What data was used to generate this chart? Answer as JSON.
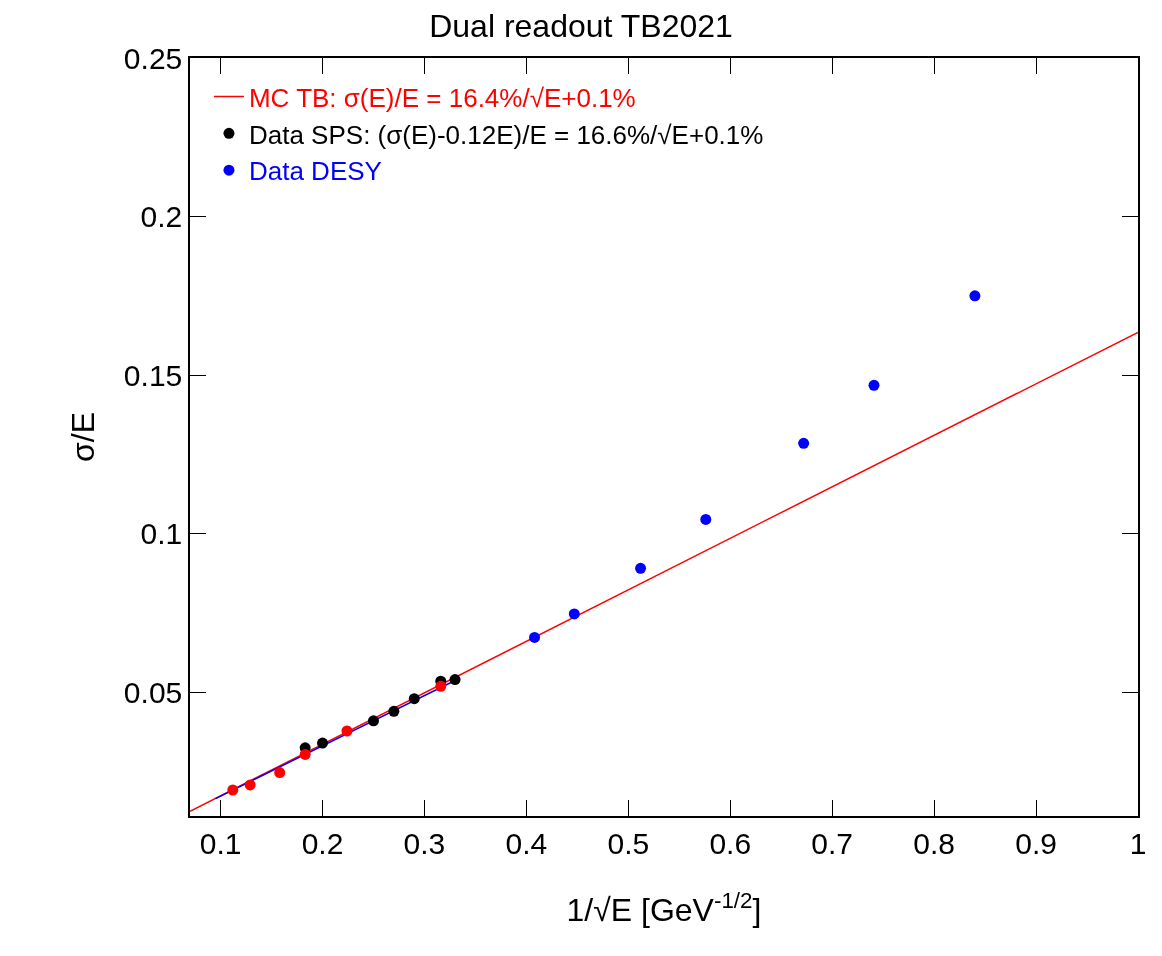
{
  "chart_data": {
    "type": "scatter",
    "title": "Dual readout TB2021",
    "xlabel": "1/√E [GeV$^{-1/2}$]",
    "ylabel": "σ/E",
    "xlim": [
      0.07,
      1.0
    ],
    "ylim": [
      0.011,
      0.25
    ],
    "xticks": [
      0.1,
      0.2,
      0.3,
      0.4,
      0.5,
      0.6,
      0.7,
      0.8,
      0.9,
      1
    ],
    "yticks": [
      0.05,
      0.1,
      0.15,
      0.2,
      0.25
    ],
    "grid": false,
    "legend": "top left",
    "marker": "circle",
    "series": [
      {
        "name": "MC TB: σ(E)/E = 16.4%/√E+0.1%",
        "type": "line",
        "marker": "none",
        "color": "#ff0000",
        "x": [
          0.07,
          1.0
        ],
        "values": [
          0.0125,
          0.1635
        ]
      },
      {
        "type": "line",
        "marker": "none",
        "color": "#0000ff",
        "x": [
          0.095,
          0.335
        ],
        "values": [
          0.0165,
          0.0545
        ]
      },
      {
        "name": "Data SPS: (σ(E)-0.12E)/E = 16.6%/√E+0.1%",
        "color": "#000000",
        "x": [
          0.183,
          0.2,
          0.224,
          0.25,
          0.27,
          0.29,
          0.316,
          0.33
        ],
        "values": [
          0.0325,
          0.034,
          null,
          0.041,
          0.044,
          0.048,
          0.0535,
          0.054
        ]
      },
      {
        "color": "#ff0000",
        "x": [
          0.112,
          0.129,
          0.158,
          0.183,
          0.224,
          0.316
        ],
        "values": [
          0.0192,
          0.0208,
          0.0247,
          0.0304,
          0.0378,
          0.0519
        ]
      },
      {
        "name": "Data DESY",
        "color": "#0000ff",
        "x": [
          0.408,
          0.447,
          0.512,
          0.576,
          0.672,
          0.741,
          0.84
        ],
        "values": [
          0.0673,
          0.0747,
          0.0891,
          0.1045,
          0.1285,
          0.1468,
          0.175
        ]
      }
    ]
  }
}
